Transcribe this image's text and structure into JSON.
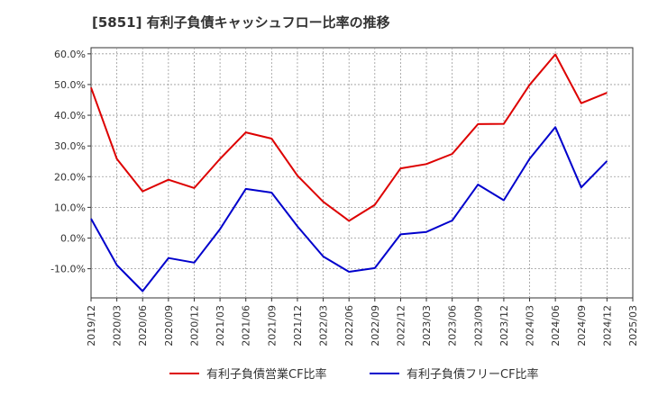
{
  "chart_data": {
    "type": "line",
    "title": "[5851]  有利子負債キャッシュフロー比率の推移",
    "xlabel": "",
    "ylabel": "",
    "x": [
      "2019/12",
      "2020/03",
      "2020/06",
      "2020/09",
      "2020/12",
      "2021/03",
      "2021/06",
      "2021/09",
      "2021/12",
      "2022/03",
      "2022/06",
      "2022/09",
      "2022/12",
      "2023/03",
      "2023/06",
      "2023/09",
      "2023/12",
      "2024/03",
      "2024/06",
      "2024/09",
      "2024/12",
      "2025/03"
    ],
    "ylim": [
      -19.5,
      62
    ],
    "yticks": [
      60,
      50,
      40,
      30,
      20,
      10,
      0,
      -10
    ],
    "ytick_labels": [
      "60.0%",
      "50.0%",
      "40.0%",
      "30.0%",
      "20.0%",
      "10.0%",
      "0.0%",
      "-10.0%"
    ],
    "grid": true,
    "legend_position": "bottom",
    "series": [
      {
        "name": "有利子負債営業CF比率",
        "color": "#dd0000",
        "values": [
          49.0,
          25.8,
          15.2,
          19.0,
          16.3,
          25.8,
          34.4,
          32.4,
          20.3,
          11.8,
          5.6,
          10.8,
          22.7,
          24.1,
          27.4,
          37.1,
          37.2,
          49.9,
          59.8,
          43.9,
          47.3,
          null
        ]
      },
      {
        "name": "有利子負債フリーCF比率",
        "color": "#0000cc",
        "values": [
          6.3,
          -8.8,
          -17.3,
          -6.5,
          -8.0,
          2.9,
          16.0,
          14.8,
          3.8,
          -6.0,
          -11.0,
          -9.8,
          1.2,
          2.0,
          5.7,
          17.4,
          12.3,
          25.8,
          36.1,
          16.5,
          25.1,
          null
        ]
      }
    ]
  }
}
